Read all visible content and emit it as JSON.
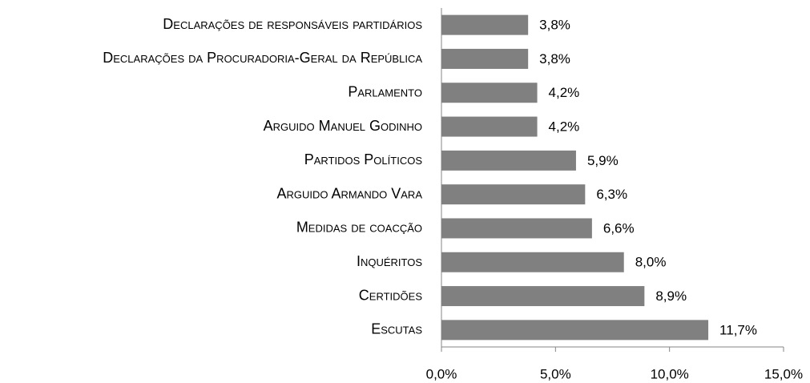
{
  "chart_data": {
    "type": "bar",
    "orientation": "horizontal",
    "categories": [
      "Declarações de responsáveis partidários",
      "Declarações da Procuradoria-Geral da República",
      "Parlamento",
      "Arguido Manuel Godinho",
      "Partidos Políticos",
      "Arguido Armando Vara",
      "Medidas de coacção",
      "Inquéritos",
      "Certidões",
      "Escutas"
    ],
    "values": [
      3.8,
      3.8,
      4.2,
      4.2,
      5.9,
      6.3,
      6.6,
      8.0,
      8.9,
      11.7
    ],
    "value_labels": [
      "3,8%",
      "3,8%",
      "4,2%",
      "4,2%",
      "5,9%",
      "6,3%",
      "6,6%",
      "8,0%",
      "8,9%",
      "11,7%"
    ],
    "color": "#808080",
    "xlim": [
      0,
      15
    ],
    "xticks": [
      {
        "value": 0,
        "label": "0,0%"
      },
      {
        "value": 5,
        "label": "5,0%"
      },
      {
        "value": 10,
        "label": "10,0%"
      },
      {
        "value": 15,
        "label": "15,0%"
      }
    ]
  }
}
